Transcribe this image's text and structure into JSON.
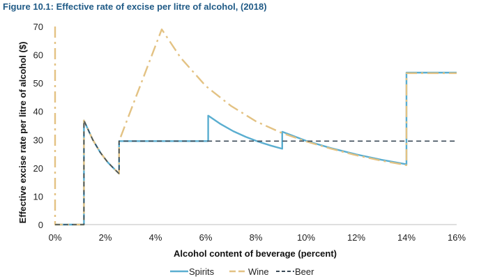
{
  "chart_data": {
    "type": "line",
    "title": "Figure 10.1: Effective rate of excise per litre of alcohol, (2018)",
    "xlabel": "Alcohol content of beverage (percent)",
    "ylabel": "Effective excise rate per litre of alcohol ($)",
    "xlim": [
      0,
      16
    ],
    "ylim": [
      0,
      70
    ],
    "x_ticks": [
      0,
      2,
      4,
      6,
      8,
      10,
      12,
      14,
      16
    ],
    "x_tick_labels": [
      "0%",
      "2%",
      "4%",
      "6%",
      "8%",
      "10%",
      "12%",
      "14%",
      "16%"
    ],
    "y_ticks": [
      0,
      10,
      20,
      30,
      40,
      50,
      60,
      70
    ],
    "y_tick_labels": [
      "0",
      "10",
      "20",
      "30",
      "40",
      "50",
      "60",
      "70"
    ],
    "legend_position": "bottom",
    "series": [
      {
        "name": "Spirits",
        "color": "#5aaed0",
        "style": "solid",
        "points": [
          [
            0,
            0
          ],
          [
            1.15,
            0
          ],
          [
            1.15,
            36.8
          ],
          [
            1.5,
            30
          ],
          [
            1.8,
            25.5
          ],
          [
            2.1,
            22
          ],
          [
            2.4,
            19.3
          ],
          [
            2.55,
            18
          ],
          [
            2.55,
            29.5
          ],
          [
            6.1,
            29.5
          ],
          [
            6.1,
            38.5
          ],
          [
            6.6,
            35.5
          ],
          [
            7.1,
            33
          ],
          [
            7.6,
            31
          ],
          [
            8.1,
            29.3
          ],
          [
            8.6,
            27.9
          ],
          [
            9.05,
            26.8
          ],
          [
            9.05,
            32.8
          ],
          [
            10,
            29.6
          ],
          [
            11,
            27
          ],
          [
            12,
            24.8
          ],
          [
            13,
            22.9
          ],
          [
            14,
            21.3
          ],
          [
            14,
            53.7
          ],
          [
            16,
            53.7
          ]
        ]
      },
      {
        "name": "Wine",
        "color": "#e3c283",
        "style": "dashdot",
        "points": [
          [
            0,
            70
          ],
          [
            0,
            0
          ],
          [
            1.15,
            0
          ],
          [
            1.15,
            36.8
          ],
          [
            1.5,
            30
          ],
          [
            1.8,
            25.5
          ],
          [
            2.1,
            22
          ],
          [
            2.4,
            19.3
          ],
          [
            2.55,
            18
          ],
          [
            2.55,
            29.5
          ],
          [
            4.25,
            69
          ],
          [
            5,
            59
          ],
          [
            6,
            49
          ],
          [
            7,
            42
          ],
          [
            8,
            36.5
          ],
          [
            9,
            32.5
          ],
          [
            10,
            29.4
          ],
          [
            11,
            26.8
          ],
          [
            12,
            24.5
          ],
          [
            13,
            22.6
          ],
          [
            14,
            21
          ],
          [
            14,
            53.5
          ],
          [
            16,
            53.5
          ]
        ]
      },
      {
        "name": "Beer",
        "color": "#3b4a57",
        "style": "dashed",
        "points": [
          [
            0,
            0
          ],
          [
            1.15,
            0
          ],
          [
            1.15,
            36.8
          ],
          [
            1.5,
            30
          ],
          [
            1.8,
            25.5
          ],
          [
            2.1,
            22
          ],
          [
            2.4,
            19.3
          ],
          [
            2.55,
            18
          ],
          [
            2.55,
            29.5
          ],
          [
            16,
            29.5
          ]
        ]
      }
    ]
  }
}
